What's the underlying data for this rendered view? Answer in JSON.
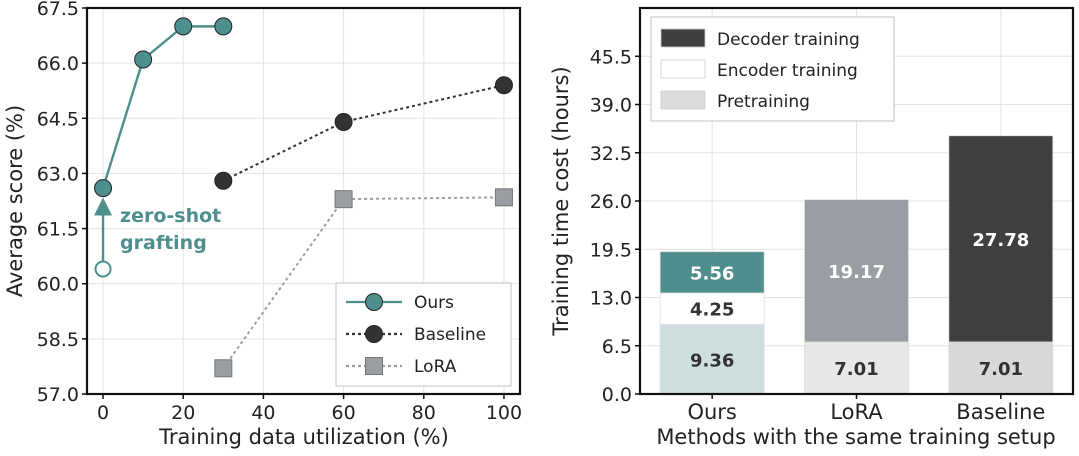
{
  "chart_data": [
    {
      "type": "line",
      "xlabel": "Training data utilization (%)",
      "ylabel": "Average score (%)",
      "xlim": [
        -4,
        104
      ],
      "ylim": [
        57.0,
        67.5
      ],
      "xticks": [
        "0",
        "20",
        "40",
        "60",
        "80",
        "100"
      ],
      "xtick_values": [
        0,
        20,
        40,
        60,
        80,
        100
      ],
      "yticks": [
        "57.0",
        "58.5",
        "60.0",
        "61.5",
        "63.0",
        "64.5",
        "66.0",
        "67.5"
      ],
      "ytick_values": [
        57.0,
        58.5,
        60.0,
        61.5,
        63.0,
        64.5,
        66.0,
        67.5
      ],
      "grid": true,
      "legend_position": "bottom-right",
      "series": [
        {
          "name": "Ours",
          "style": "solid",
          "marker": "circle",
          "color": "#4e8e8c",
          "x": [
            0,
            10,
            20,
            30
          ],
          "y": [
            62.6,
            66.1,
            67.0,
            67.0
          ]
        },
        {
          "name": "Baseline",
          "style": "dotted",
          "marker": "circle",
          "color": "#333333",
          "x": [
            30,
            60,
            100
          ],
          "y": [
            62.8,
            64.4,
            65.4
          ]
        },
        {
          "name": "LoRA",
          "style": "dotted",
          "marker": "square",
          "color": "#9a9ea3",
          "x": [
            30,
            60,
            100
          ],
          "y": [
            57.7,
            62.3,
            62.35
          ]
        }
      ],
      "annotation": {
        "lines": [
          "zero-shot",
          "grafting"
        ],
        "arrow_from": [
          0,
          60.4
        ],
        "arrow_to": [
          0,
          62.1
        ],
        "color": "#4e8e8c"
      }
    },
    {
      "type": "bar",
      "stacked": true,
      "xlabel": "Methods with the same training setup",
      "ylabel": "Training time cost (hours)",
      "ylim": [
        0,
        52
      ],
      "yticks": [
        "0.0",
        "6.5",
        "13.0",
        "19.5",
        "26.0",
        "32.5",
        "39.0",
        "45.5"
      ],
      "ytick_values": [
        0,
        6.5,
        13.0,
        19.5,
        26.0,
        32.5,
        39.0,
        45.5
      ],
      "grid": true,
      "legend_position": "top-left",
      "legend": [
        {
          "name": "Decoder training",
          "color": "#3f3f3f"
        },
        {
          "name": "Encoder training",
          "color": "#ffffff"
        },
        {
          "name": "Pretraining",
          "color": "#dcdcdc"
        }
      ],
      "categories": [
        "Ours",
        "LoRA",
        "Baseline"
      ],
      "bars": [
        {
          "category": "Ours",
          "segments": [
            {
              "value": 9.36,
              "label": "9.36",
              "color": "#cfdfe0",
              "label_color": "#333333"
            },
            {
              "value": 4.25,
              "label": "4.25",
              "color": "#ffffff",
              "label_color": "#333333"
            },
            {
              "value": 5.56,
              "label": "5.56",
              "color": "#4e8e8c",
              "label_color": "#ffffff"
            }
          ]
        },
        {
          "category": "LoRA",
          "segments": [
            {
              "value": 7.01,
              "label": "7.01",
              "color": "#e8e8e9",
              "label_color": "#333333"
            },
            {
              "value": 19.17,
              "label": "19.17",
              "color": "#999ea4",
              "label_color": "#ffffff"
            }
          ]
        },
        {
          "category": "Baseline",
          "segments": [
            {
              "value": 7.01,
              "label": "7.01",
              "color": "#d8d8d8",
              "label_color": "#333333"
            },
            {
              "value": 27.78,
              "label": "27.78",
              "color": "#404040",
              "label_color": "#ffffff"
            }
          ]
        }
      ]
    }
  ]
}
